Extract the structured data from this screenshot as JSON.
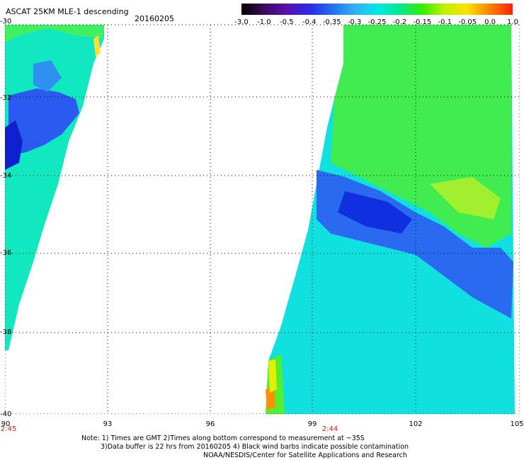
{
  "header": {
    "title": "ASCAT 25KM MLE-1 descending",
    "date": "20160205"
  },
  "colorbar": {
    "labels": [
      "-3.0",
      "-1.0",
      "-0.5",
      "-0.4",
      "-0.35",
      "-0.3",
      "-0.25",
      "-0.2",
      "-0.15",
      "-0.1",
      "-0.05",
      "0.0",
      "1.0"
    ],
    "colors": [
      "#000000",
      "#3a0a60",
      "#5a10b0",
      "#2a2ae8",
      "#2070f0",
      "#30b0f8",
      "#00e8e8",
      "#00e890",
      "#30f000",
      "#c0f000",
      "#ffe000",
      "#ff8000",
      "#ff2000"
    ]
  },
  "axes": {
    "lat_labels": [
      "-30",
      "-32",
      "-34",
      "-36",
      "-38",
      "-40"
    ],
    "lon_labels": [
      "90",
      "93",
      "96",
      "99",
      "102",
      "105"
    ]
  },
  "times": [
    "2:45",
    "2:44"
  ],
  "notes": [
    "Note: 1) Times are GMT 2)Times along bottom correspond to measurement at ~35S",
    "3)Data buffer is 22 hrs from 20160205 4) Black wind barbs indicate possible contamination",
    "NOAA/NESDIS/Center for Satellite Applications and Research"
  ]
}
